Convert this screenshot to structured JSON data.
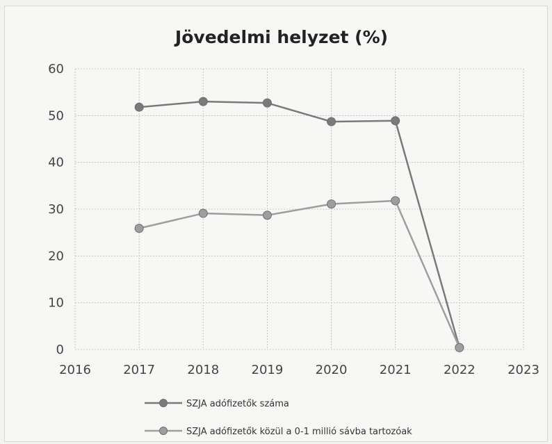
{
  "chart_data": {
    "type": "line",
    "title": "Jövedelmi helyzet (%)",
    "xlabel": "",
    "ylabel": "",
    "x": [
      2017,
      2018,
      2019,
      2020,
      2021,
      2022
    ],
    "x_ticks": [
      "2016",
      "2017",
      "2018",
      "2019",
      "2020",
      "2021",
      "2022",
      "2023"
    ],
    "xlim": [
      2016,
      2023
    ],
    "y_ticks": [
      "0",
      "10",
      "20",
      "30",
      "40",
      "50",
      "60"
    ],
    "ylim": [
      0,
      60
    ],
    "grid": true,
    "legend_position": "bottom",
    "series": [
      {
        "name": "SZJA adófizetők száma",
        "values": [
          51.8,
          53.0,
          52.7,
          48.7,
          48.9,
          0.4
        ],
        "color": "#7a7a7a"
      },
      {
        "name": "SZJA adófizetők közül a 0-1 millió sávba tartozóak",
        "values": [
          25.9,
          29.1,
          28.7,
          31.1,
          31.8,
          0.4
        ],
        "color": "#9e9e9e"
      }
    ]
  }
}
